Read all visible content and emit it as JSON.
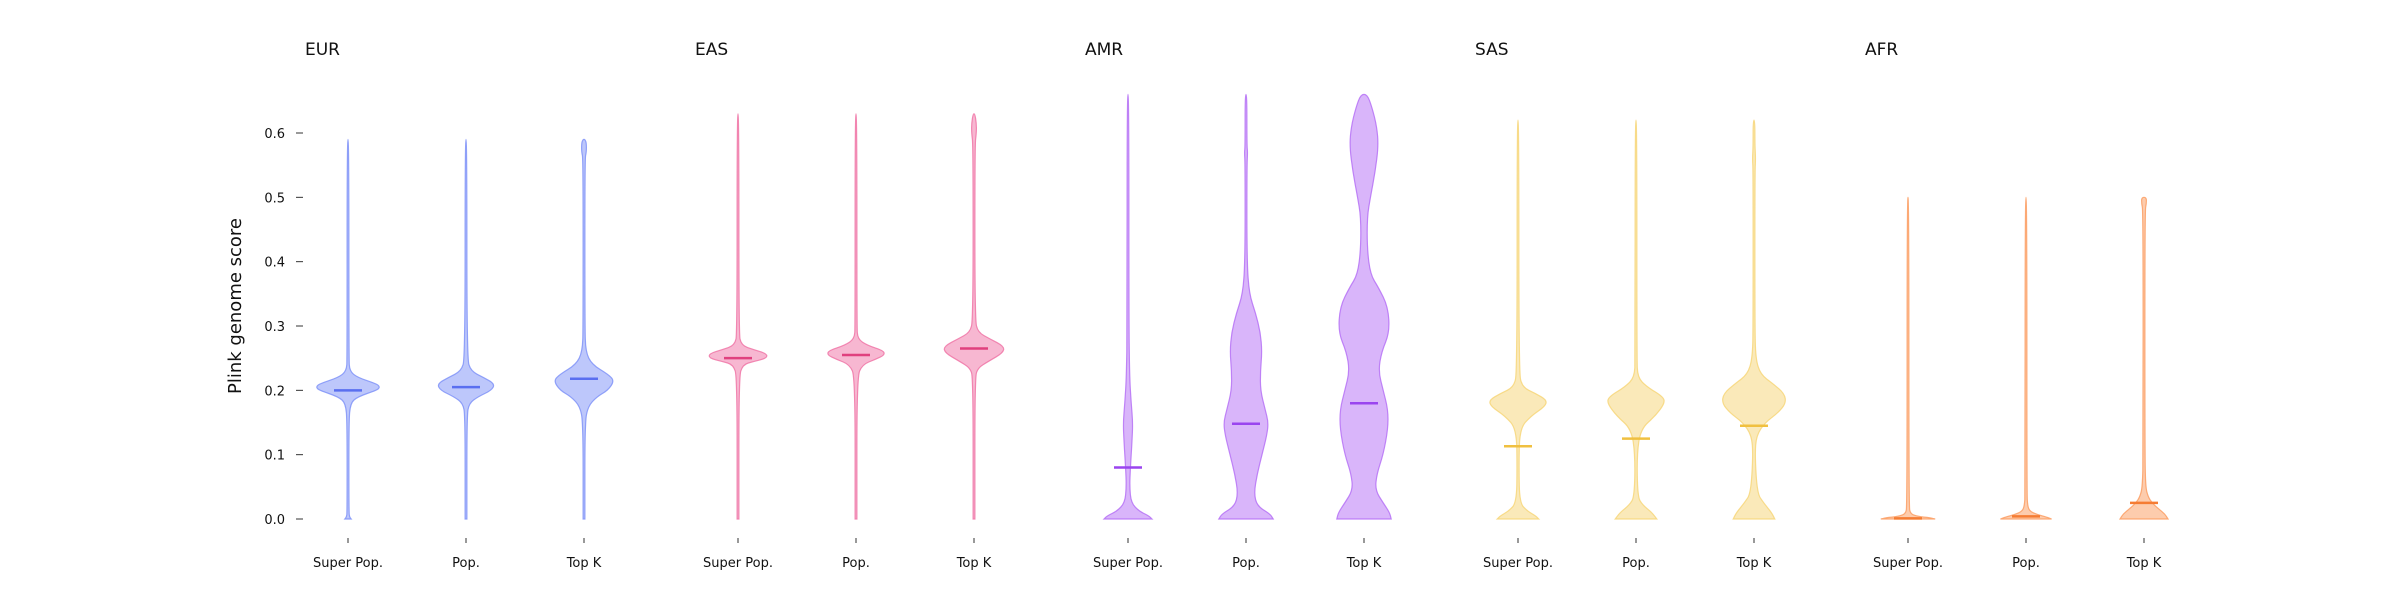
{
  "chart_data": {
    "type": "violin",
    "ylabel": "Plink genome score",
    "ylim": [
      -0.02,
      0.66
    ],
    "yticks": [
      0.0,
      0.1,
      0.2,
      0.3,
      0.4,
      0.5,
      0.6
    ],
    "ytick_labels": [
      "0.0",
      "0.1",
      "0.2",
      "0.3",
      "0.4",
      "0.5",
      "0.6"
    ],
    "categories": [
      "Super Pop.",
      "Pop.",
      "Top K"
    ],
    "panels": [
      {
        "title": "EUR",
        "color": "#7b8ff7",
        "median_color": "#5a6ff0",
        "violins": [
          {
            "category": "Super Pop.",
            "min": 0.0,
            "max": 0.59,
            "median": 0.2,
            "profile": [
              [
                0.0,
                0.004
              ],
              [
                0.003,
                0.002
              ],
              [
                0.01,
                0.001
              ],
              [
                0.15,
                0.001
              ],
              [
                0.18,
                0.003
              ],
              [
                0.19,
                0.012
              ],
              [
                0.2,
                0.036
              ],
              [
                0.205,
                0.04
              ],
              [
                0.21,
                0.036
              ],
              [
                0.22,
                0.012
              ],
              [
                0.23,
                0.002
              ],
              [
                0.25,
                0.001
              ],
              [
                0.59,
                0.001
              ]
            ]
          },
          {
            "category": "Pop.",
            "min": 0.0,
            "max": 0.59,
            "median": 0.205,
            "profile": [
              [
                0.0,
                0.001
              ],
              [
                0.16,
                0.001
              ],
              [
                0.18,
                0.004
              ],
              [
                0.19,
                0.015
              ],
              [
                0.2,
                0.032
              ],
              [
                0.21,
                0.036
              ],
              [
                0.22,
                0.022
              ],
              [
                0.23,
                0.006
              ],
              [
                0.25,
                0.001
              ],
              [
                0.59,
                0.001
              ]
            ]
          },
          {
            "category": "Top K",
            "min": 0.0,
            "max": 0.59,
            "median": 0.218,
            "profile": [
              [
                0.0,
                0.001
              ],
              [
                0.15,
                0.001
              ],
              [
                0.175,
                0.005
              ],
              [
                0.19,
                0.016
              ],
              [
                0.2,
                0.03
              ],
              [
                0.215,
                0.038
              ],
              [
                0.225,
                0.03
              ],
              [
                0.24,
                0.01
              ],
              [
                0.26,
                0.002
              ],
              [
                0.3,
                0.001
              ],
              [
                0.56,
                0.001
              ],
              [
                0.57,
                0.003
              ],
              [
                0.585,
                0.003
              ],
              [
                0.59,
                0.001
              ]
            ]
          }
        ]
      },
      {
        "title": "EAS",
        "color": "#ef6fa3",
        "median_color": "#e0407e",
        "violins": [
          {
            "category": "Super Pop.",
            "min": 0.0,
            "max": 0.63,
            "median": 0.25,
            "profile": [
              [
                0.0,
                0.001
              ],
              [
                0.22,
                0.001
              ],
              [
                0.24,
                0.006
              ],
              [
                0.245,
                0.02
              ],
              [
                0.25,
                0.036
              ],
              [
                0.257,
                0.036
              ],
              [
                0.263,
                0.02
              ],
              [
                0.27,
                0.004
              ],
              [
                0.29,
                0.001
              ],
              [
                0.63,
                0.001
              ]
            ]
          },
          {
            "category": "Pop.",
            "min": 0.0,
            "max": 0.63,
            "median": 0.255,
            "profile": [
              [
                0.0,
                0.001
              ],
              [
                0.22,
                0.001
              ],
              [
                0.24,
                0.008
              ],
              [
                0.248,
                0.024
              ],
              [
                0.255,
                0.036
              ],
              [
                0.262,
                0.034
              ],
              [
                0.27,
                0.014
              ],
              [
                0.28,
                0.002
              ],
              [
                0.3,
                0.001
              ],
              [
                0.63,
                0.001
              ]
            ]
          },
          {
            "category": "Top K",
            "min": 0.0,
            "max": 0.63,
            "median": 0.265,
            "profile": [
              [
                0.0,
                0.001
              ],
              [
                0.22,
                0.001
              ],
              [
                0.235,
                0.005
              ],
              [
                0.245,
                0.018
              ],
              [
                0.258,
                0.036
              ],
              [
                0.268,
                0.038
              ],
              [
                0.28,
                0.02
              ],
              [
                0.29,
                0.005
              ],
              [
                0.31,
                0.001
              ],
              [
                0.58,
                0.001
              ],
              [
                0.6,
                0.003
              ],
              [
                0.615,
                0.003
              ],
              [
                0.63,
                0.001
              ]
            ]
          }
        ]
      },
      {
        "title": "AMR",
        "color": "#b36cf5",
        "median_color": "#9a44ef",
        "violins": [
          {
            "category": "Super Pop.",
            "min": 0.0,
            "max": 0.66,
            "median": 0.08,
            "profile": [
              [
                0.0,
                0.03
              ],
              [
                0.005,
                0.026
              ],
              [
                0.012,
                0.014
              ],
              [
                0.025,
                0.004
              ],
              [
                0.05,
                0.002
              ],
              [
                0.08,
                0.003
              ],
              [
                0.12,
                0.005
              ],
              [
                0.15,
                0.006
              ],
              [
                0.18,
                0.004
              ],
              [
                0.22,
                0.002
              ],
              [
                0.3,
                0.001
              ],
              [
                0.66,
                0.001
              ]
            ]
          },
          {
            "category": "Pop.",
            "min": 0.0,
            "max": 0.66,
            "median": 0.148,
            "profile": [
              [
                0.0,
                0.034
              ],
              [
                0.008,
                0.03
              ],
              [
                0.02,
                0.014
              ],
              [
                0.04,
                0.01
              ],
              [
                0.07,
                0.014
              ],
              [
                0.1,
                0.02
              ],
              [
                0.13,
                0.026
              ],
              [
                0.15,
                0.028
              ],
              [
                0.17,
                0.024
              ],
              [
                0.2,
                0.018
              ],
              [
                0.23,
                0.018
              ],
              [
                0.26,
                0.02
              ],
              [
                0.29,
                0.018
              ],
              [
                0.32,
                0.012
              ],
              [
                0.35,
                0.004
              ],
              [
                0.4,
                0.001
              ],
              [
                0.55,
                0.001
              ],
              [
                0.57,
                0.002
              ],
              [
                0.58,
                0.001
              ],
              [
                0.66,
                0.001
              ]
            ]
          },
          {
            "category": "Top K",
            "min": 0.0,
            "max": 0.66,
            "median": 0.18,
            "profile": [
              [
                0.0,
                0.034
              ],
              [
                0.01,
                0.032
              ],
              [
                0.025,
                0.024
              ],
              [
                0.045,
                0.014
              ],
              [
                0.07,
                0.016
              ],
              [
                0.1,
                0.024
              ],
              [
                0.14,
                0.03
              ],
              [
                0.17,
                0.03
              ],
              [
                0.2,
                0.024
              ],
              [
                0.23,
                0.018
              ],
              [
                0.26,
                0.022
              ],
              [
                0.29,
                0.032
              ],
              [
                0.33,
                0.03
              ],
              [
                0.36,
                0.018
              ],
              [
                0.38,
                0.008
              ],
              [
                0.42,
                0.004
              ],
              [
                0.47,
                0.004
              ],
              [
                0.5,
                0.008
              ],
              [
                0.54,
                0.014
              ],
              [
                0.58,
                0.018
              ],
              [
                0.61,
                0.016
              ],
              [
                0.64,
                0.01
              ],
              [
                0.66,
                0.004
              ]
            ]
          }
        ]
      },
      {
        "title": "SAS",
        "color": "#f6d474",
        "median_color": "#f0c040",
        "violins": [
          {
            "category": "Super Pop.",
            "min": 0.0,
            "max": 0.62,
            "median": 0.113,
            "profile": [
              [
                0.0,
                0.026
              ],
              [
                0.005,
                0.022
              ],
              [
                0.012,
                0.012
              ],
              [
                0.025,
                0.002
              ],
              [
                0.08,
                0.001
              ],
              [
                0.14,
                0.002
              ],
              [
                0.16,
                0.016
              ],
              [
                0.175,
                0.034
              ],
              [
                0.185,
                0.036
              ],
              [
                0.195,
                0.022
              ],
              [
                0.205,
                0.005
              ],
              [
                0.23,
                0.001
              ],
              [
                0.62,
                0.001
              ]
            ]
          },
          {
            "category": "Pop.",
            "min": 0.0,
            "max": 0.62,
            "median": 0.125,
            "profile": [
              [
                0.0,
                0.026
              ],
              [
                0.01,
                0.02
              ],
              [
                0.022,
                0.008
              ],
              [
                0.035,
                0.002
              ],
              [
                0.1,
                0.001
              ],
              [
                0.14,
                0.006
              ],
              [
                0.16,
                0.024
              ],
              [
                0.18,
                0.036
              ],
              [
                0.19,
                0.034
              ],
              [
                0.205,
                0.014
              ],
              [
                0.22,
                0.002
              ],
              [
                0.25,
                0.001
              ],
              [
                0.62,
                0.001
              ]
            ]
          },
          {
            "category": "Top K",
            "min": 0.0,
            "max": 0.62,
            "median": 0.145,
            "profile": [
              [
                0.0,
                0.026
              ],
              [
                0.01,
                0.022
              ],
              [
                0.025,
                0.012
              ],
              [
                0.04,
                0.004
              ],
              [
                0.1,
                0.001
              ],
              [
                0.13,
                0.003
              ],
              [
                0.15,
                0.014
              ],
              [
                0.165,
                0.03
              ],
              [
                0.18,
                0.04
              ],
              [
                0.195,
                0.038
              ],
              [
                0.21,
                0.024
              ],
              [
                0.225,
                0.008
              ],
              [
                0.25,
                0.002
              ],
              [
                0.3,
                0.001
              ],
              [
                0.54,
                0.001
              ],
              [
                0.56,
                0.002
              ],
              [
                0.58,
                0.001
              ],
              [
                0.62,
                0.001
              ]
            ]
          }
        ]
      },
      {
        "title": "AFR",
        "color": "#fb9a5c",
        "median_color": "#f57c33",
        "violins": [
          {
            "category": "Super Pop.",
            "min": 0.0,
            "max": 0.5,
            "median": 0.001,
            "profile": [
              [
                0.0,
                0.034
              ],
              [
                0.002,
                0.028
              ],
              [
                0.004,
                0.012
              ],
              [
                0.008,
                0.003
              ],
              [
                0.02,
                0.001
              ],
              [
                0.5,
                0.001
              ]
            ]
          },
          {
            "category": "Pop.",
            "min": 0.0,
            "max": 0.5,
            "median": 0.004,
            "profile": [
              [
                0.0,
                0.032
              ],
              [
                0.003,
                0.026
              ],
              [
                0.007,
                0.014
              ],
              [
                0.012,
                0.005
              ],
              [
                0.02,
                0.002
              ],
              [
                0.04,
                0.001
              ],
              [
                0.5,
                0.001
              ]
            ]
          },
          {
            "category": "Top K",
            "min": 0.0,
            "max": 0.5,
            "median": 0.025,
            "profile": [
              [
                0.0,
                0.03
              ],
              [
                0.008,
                0.026
              ],
              [
                0.016,
                0.018
              ],
              [
                0.025,
                0.01
              ],
              [
                0.035,
                0.005
              ],
              [
                0.05,
                0.002
              ],
              [
                0.1,
                0.001
              ],
              [
                0.48,
                0.001
              ],
              [
                0.49,
                0.003
              ],
              [
                0.5,
                0.003
              ]
            ]
          }
        ]
      }
    ]
  }
}
